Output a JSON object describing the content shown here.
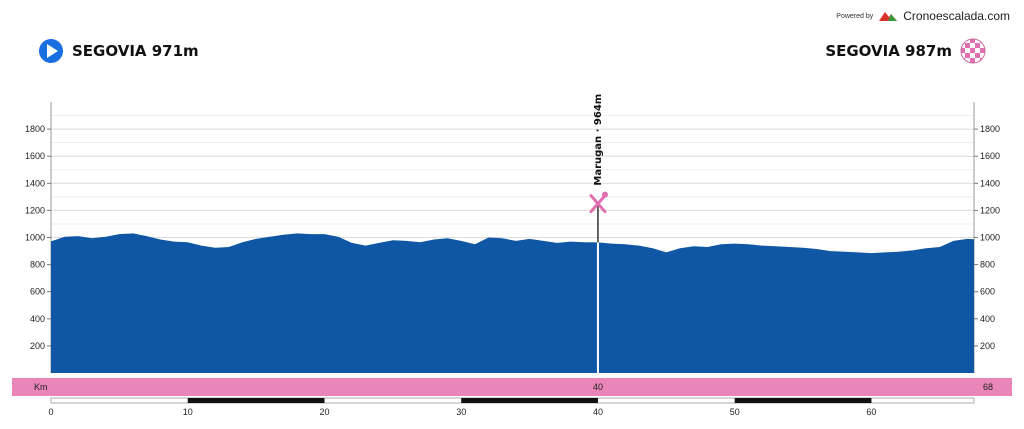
{
  "header": {
    "powered_by": "Powered by",
    "brand": "Cronoescalada.com",
    "start_label": "SEGOVIA 971m",
    "finish_label": "SEGOVIA 987m"
  },
  "colors": {
    "profile_fill": "#0f57a4",
    "km_band": "#e985b8",
    "waypoint_marker": "#e070b0",
    "start_icon": "#1a6fe0",
    "brand_logo_red": "#d9302c",
    "brand_logo_green": "#3a9a3a"
  },
  "icons": {
    "start": "play-circle-icon",
    "finish": "checkered-flag-icon",
    "waypoint": "fork-knife-icon",
    "brand": "mountain-logo-icon"
  },
  "chart_data": {
    "type": "area",
    "xlabel": "Km",
    "total_km": "68",
    "xlim": [
      0,
      67.5
    ],
    "ylim": [
      0,
      2000
    ],
    "y_ticks": [
      200,
      400,
      600,
      800,
      1000,
      1200,
      1400,
      1600,
      1800
    ],
    "x_ticks": [
      0,
      10,
      20,
      30,
      40,
      50,
      60
    ],
    "x_tick_labels": [
      "0",
      "10",
      "20",
      "30",
      "40",
      "50",
      "60"
    ],
    "x": [
      0,
      1,
      2,
      3,
      4,
      5,
      6,
      7,
      8,
      9,
      10,
      11,
      12,
      13,
      14,
      15,
      16,
      17,
      18,
      19,
      20,
      21,
      22,
      23,
      24,
      25,
      26,
      27,
      28,
      29,
      30,
      31,
      32,
      33,
      34,
      35,
      36,
      37,
      38,
      39,
      40,
      41,
      42,
      43,
      44,
      45,
      46,
      47,
      48,
      49,
      50,
      51,
      52,
      53,
      54,
      55,
      56,
      57,
      58,
      59,
      60,
      61,
      62,
      63,
      64,
      65,
      66,
      67,
      67.5
    ],
    "elevation": [
      971,
      1005,
      1010,
      995,
      1005,
      1025,
      1030,
      1010,
      985,
      970,
      965,
      940,
      925,
      930,
      965,
      990,
      1005,
      1020,
      1030,
      1025,
      1025,
      1005,
      960,
      940,
      960,
      980,
      975,
      965,
      985,
      995,
      975,
      950,
      1000,
      995,
      975,
      990,
      975,
      960,
      970,
      965,
      964,
      955,
      950,
      940,
      920,
      890,
      920,
      935,
      930,
      950,
      955,
      950,
      940,
      935,
      930,
      925,
      915,
      900,
      895,
      890,
      885,
      890,
      895,
      905,
      920,
      930,
      975,
      990,
      987
    ],
    "waypoints": [
      {
        "km": 40,
        "elevation": 964,
        "label": "Marugan · 964m",
        "km_label": "40"
      }
    ]
  }
}
